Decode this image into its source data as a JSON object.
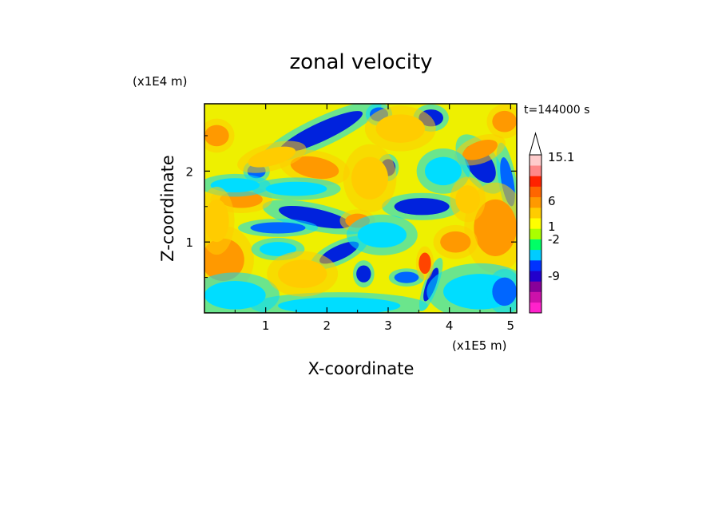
{
  "chart_data": {
    "type": "heatmap",
    "title": "zonal velocity",
    "xlabel": "X-coordinate",
    "ylabel": "Z-coordinate",
    "x_unit": "(x1E5 m)",
    "y_unit": "(x1E4 m)",
    "time_label": "t=144000 s",
    "xlim": [
      0,
      5.1
    ],
    "ylim": [
      0,
      2.95
    ],
    "x_ticks": [
      "1",
      "2",
      "3",
      "4",
      "5"
    ],
    "y_ticks": [
      "1",
      "2"
    ],
    "colorbar": {
      "labels": [
        "15.1",
        "6",
        "1",
        "-2",
        "-9"
      ],
      "bands": [
        {
          "color": "#ff22cc"
        },
        {
          "color": "#cc11aa"
        },
        {
          "color": "#880099"
        },
        {
          "color": "#2200cc"
        },
        {
          "color": "#0033ff"
        },
        {
          "color": "#00ccff"
        },
        {
          "color": "#00ff66"
        },
        {
          "color": "#aaff00"
        },
        {
          "color": "#ffff00"
        },
        {
          "color": "#ffcc00"
        },
        {
          "color": "#ff9900"
        },
        {
          "color": "#ff6600"
        },
        {
          "color": "#ff2200"
        },
        {
          "color": "#ff8888"
        },
        {
          "color": "#ffcccc"
        }
      ]
    },
    "features": [
      {
        "x": 1.9,
        "z": 2.55,
        "rx": 0.75,
        "rz": 0.13,
        "rot": 25,
        "level": -9
      },
      {
        "x": 1.8,
        "z": 1.35,
        "rx": 0.6,
        "rz": 0.12,
        "rot": -12,
        "level": -9
      },
      {
        "x": 1.2,
        "z": 1.2,
        "rx": 0.45,
        "rz": 0.08,
        "rot": 0,
        "level": -5
      },
      {
        "x": 2.2,
        "z": 0.85,
        "rx": 0.35,
        "rz": 0.1,
        "rot": 25,
        "level": -9
      },
      {
        "x": 2.6,
        "z": 0.55,
        "rx": 0.12,
        "rz": 0.12,
        "rot": 0,
        "level": -9
      },
      {
        "x": 3.55,
        "z": 1.5,
        "rx": 0.45,
        "rz": 0.12,
        "rot": 0,
        "level": -9
      },
      {
        "x": 3.7,
        "z": 2.75,
        "rx": 0.2,
        "rz": 0.12,
        "rot": 0,
        "level": -9
      },
      {
        "x": 4.5,
        "z": 2.1,
        "rx": 0.2,
        "rz": 0.3,
        "rot": 35,
        "level": -9
      },
      {
        "x": 4.95,
        "z": 1.85,
        "rx": 0.1,
        "rz": 0.35,
        "rot": 10,
        "level": -5
      },
      {
        "x": 3.0,
        "z": 2.05,
        "rx": 0.12,
        "rz": 0.12,
        "rot": 0,
        "level": -9
      },
      {
        "x": 3.3,
        "z": 0.5,
        "rx": 0.2,
        "rz": 0.08,
        "rot": 0,
        "level": -5
      },
      {
        "x": 3.7,
        "z": 0.4,
        "rx": 0.08,
        "rz": 0.25,
        "rot": -20,
        "level": -9
      },
      {
        "x": 2.85,
        "z": 2.8,
        "rx": 0.15,
        "rz": 0.1,
        "rot": 0,
        "level": -5
      },
      {
        "x": 0.85,
        "z": 2.0,
        "rx": 0.15,
        "rz": 0.1,
        "rot": 0,
        "level": -5
      },
      {
        "x": 0.3,
        "z": 0.75,
        "rx": 0.35,
        "rz": 0.3,
        "rot": 0,
        "level": 6
      },
      {
        "x": 4.75,
        "z": 1.2,
        "rx": 0.35,
        "rz": 0.4,
        "rot": 0,
        "level": 6
      },
      {
        "x": 4.5,
        "z": 2.3,
        "rx": 0.3,
        "rz": 0.12,
        "rot": 20,
        "level": 6
      },
      {
        "x": 3.6,
        "z": 0.7,
        "rx": 0.1,
        "rz": 0.15,
        "rot": 0,
        "level": 8
      },
      {
        "x": 1.8,
        "z": 2.05,
        "rx": 0.4,
        "rz": 0.15,
        "rot": -10,
        "level": 6
      },
      {
        "x": 0.6,
        "z": 1.6,
        "rx": 0.35,
        "rz": 0.12,
        "rot": 0,
        "level": 6
      },
      {
        "x": 2.5,
        "z": 1.3,
        "rx": 0.2,
        "rz": 0.1,
        "rot": 0,
        "level": 6
      },
      {
        "x": 4.1,
        "z": 1.0,
        "rx": 0.25,
        "rz": 0.15,
        "rot": 0,
        "level": 6
      },
      {
        "x": 4.9,
        "z": 2.7,
        "rx": 0.2,
        "rz": 0.15,
        "rot": 0,
        "level": 6
      },
      {
        "x": 0.2,
        "z": 2.5,
        "rx": 0.2,
        "rz": 0.15,
        "rot": 0,
        "level": 6
      },
      {
        "x": 0.5,
        "z": 0.25,
        "rx": 0.5,
        "rz": 0.2,
        "rot": 0,
        "level": -3
      },
      {
        "x": 2.2,
        "z": 0.1,
        "rx": 1.0,
        "rz": 0.12,
        "rot": 0,
        "level": -3
      },
      {
        "x": 4.5,
        "z": 0.3,
        "rx": 0.6,
        "rz": 0.25,
        "rot": 0,
        "level": -3
      },
      {
        "x": 0.5,
        "z": 1.8,
        "rx": 0.4,
        "rz": 0.1,
        "rot": 0,
        "level": -3
      },
      {
        "x": 1.5,
        "z": 1.75,
        "rx": 0.5,
        "rz": 0.1,
        "rot": 0,
        "level": -3
      },
      {
        "x": 3.9,
        "z": 2.0,
        "rx": 0.3,
        "rz": 0.2,
        "rot": 0,
        "level": -3
      },
      {
        "x": 2.9,
        "z": 1.1,
        "rx": 0.4,
        "rz": 0.18,
        "rot": 0,
        "level": -3
      },
      {
        "x": 1.2,
        "z": 0.9,
        "rx": 0.3,
        "rz": 0.1,
        "rot": 0,
        "level": -3
      },
      {
        "x": 4.9,
        "z": 0.3,
        "rx": 0.2,
        "rz": 0.2,
        "rot": 0,
        "level": -5
      },
      {
        "x": 1.1,
        "z": 2.2,
        "rx": 0.4,
        "rz": 0.12,
        "rot": 15,
        "level": 3
      },
      {
        "x": 2.7,
        "z": 1.9,
        "rx": 0.3,
        "rz": 0.3,
        "rot": 0,
        "level": 3
      },
      {
        "x": 3.2,
        "z": 2.6,
        "rx": 0.4,
        "rz": 0.2,
        "rot": 0,
        "level": 3
      },
      {
        "x": 0.2,
        "z": 1.3,
        "rx": 0.2,
        "rz": 0.3,
        "rot": 0,
        "level": 3
      },
      {
        "x": 1.6,
        "z": 0.55,
        "rx": 0.4,
        "rz": 0.2,
        "rot": 0,
        "level": 3
      },
      {
        "x": 4.3,
        "z": 1.6,
        "rx": 0.2,
        "rz": 0.2,
        "rot": 0,
        "level": 3
      }
    ]
  }
}
